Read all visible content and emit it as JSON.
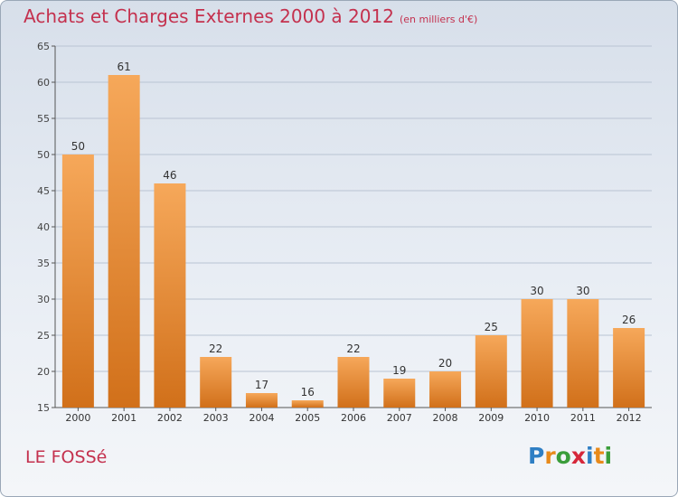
{
  "header": {
    "title": "Achats et Charges Externes 2000 à 2012",
    "subtitle": "(en milliers d'€)"
  },
  "footer": {
    "place": "LE FOSSé",
    "logo_letters": [
      "P",
      "r",
      "o",
      "x",
      "i",
      "t",
      "i"
    ],
    "logo_colors": [
      "#2f7fc4",
      "#e88a1a",
      "#3a9d3a",
      "#d6273a",
      "#2f7fc4",
      "#e88a1a",
      "#3a9d3a"
    ]
  },
  "colors": {
    "bar_top": "#f6a85a",
    "bar_bottom": "#d1701a",
    "text_accent": "#c4314e",
    "grid": "#b9c4d3"
  },
  "chart_data": {
    "type": "bar",
    "categories": [
      "2000",
      "2001",
      "2002",
      "2003",
      "2004",
      "2005",
      "2006",
      "2007",
      "2008",
      "2009",
      "2010",
      "2011",
      "2012"
    ],
    "values": [
      50,
      61,
      46,
      22,
      17,
      16,
      22,
      19,
      20,
      25,
      30,
      30,
      26
    ],
    "ylim": [
      15,
      65
    ],
    "yticks": [
      15,
      20,
      25,
      30,
      35,
      40,
      45,
      50,
      55,
      60,
      65
    ],
    "grid": true,
    "legend": "none"
  }
}
